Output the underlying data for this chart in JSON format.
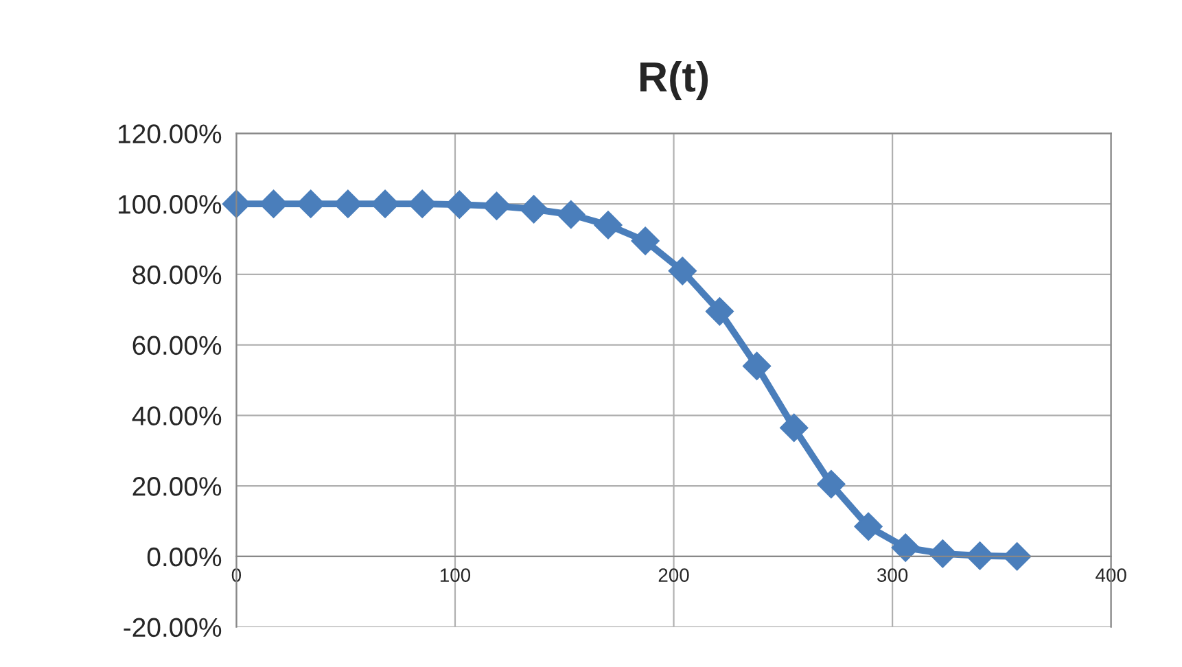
{
  "chart_data": {
    "type": "line",
    "title": "R(t)",
    "x": [
      0,
      17,
      34,
      51,
      68,
      85,
      102,
      119,
      136,
      153,
      170,
      187,
      204,
      221,
      238,
      255,
      272,
      289,
      306,
      323,
      340,
      357
    ],
    "series": [
      {
        "color": "#4a7ebb",
        "values": [
          100,
          100,
          100,
          100,
          100,
          100,
          99.8,
          99.4,
          98.5,
          97,
          94,
          89.5,
          81,
          69.5,
          54,
          36.5,
          20.5,
          8.5,
          2.5,
          0.8,
          0.2,
          0
        ]
      }
    ],
    "xlim": [
      0,
      400
    ],
    "xticks": [
      0,
      100,
      200,
      300,
      400
    ],
    "ylim": [
      -20,
      120
    ],
    "yticks": [
      {
        "value": -20,
        "label": "-20.00%"
      },
      {
        "value": 0,
        "label": "0.00%"
      },
      {
        "value": 20,
        "label": "20.00%"
      },
      {
        "value": 40,
        "label": "40.00%"
      },
      {
        "value": 60,
        "label": "60.00%"
      },
      {
        "value": 80,
        "label": "80.00%"
      },
      {
        "value": 100,
        "label": "100.00%"
      },
      {
        "value": 120,
        "label": "120.00%"
      }
    ],
    "grid": true,
    "marker": "diamond",
    "line_style": "solid",
    "legend": false
  }
}
